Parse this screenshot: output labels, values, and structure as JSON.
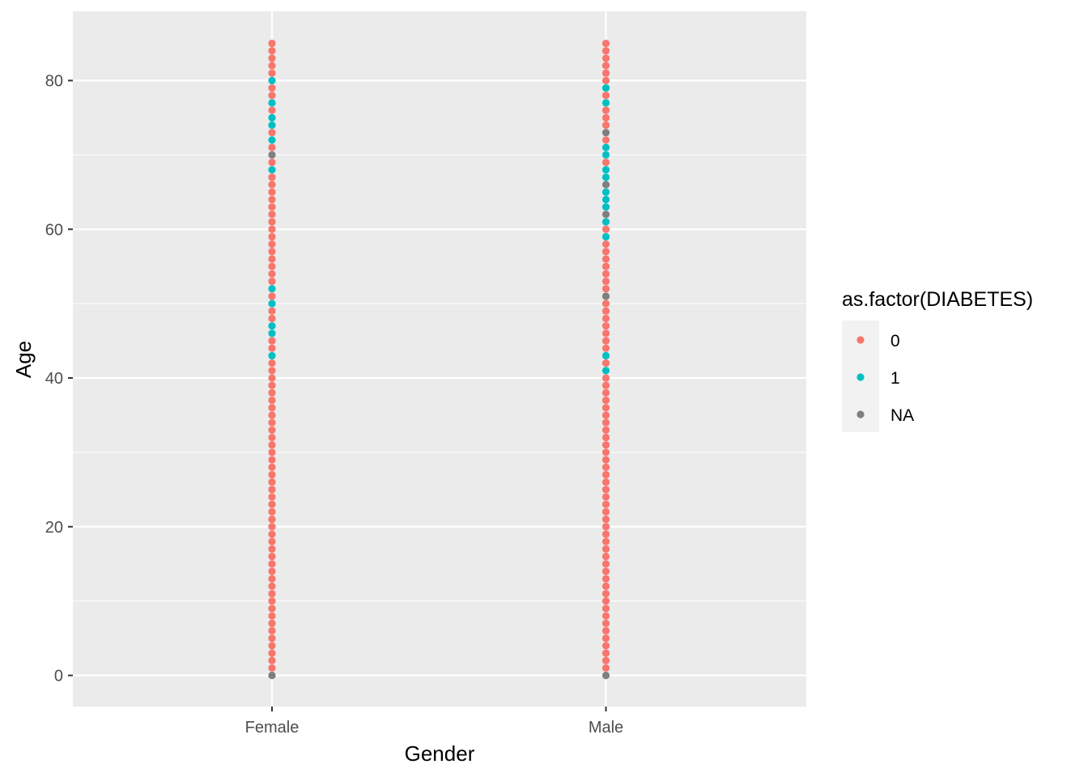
{
  "chart_data": {
    "type": "scatter",
    "title": "",
    "xlabel": "Gender",
    "ylabel": "Age",
    "categories": [
      "Female",
      "Male"
    ],
    "ylim": [
      -4,
      85
    ],
    "yticks": [
      "0",
      "20",
      "40",
      "60",
      "80"
    ],
    "y_tick_values": [
      0,
      20,
      40,
      60,
      80
    ],
    "grid": true,
    "legend": {
      "title": "as.factor(DIABETES)",
      "position": "right",
      "entries": [
        {
          "label": "0",
          "color": "#F8766D"
        },
        {
          "label": "1",
          "color": "#00BFC4"
        },
        {
          "label": "NA",
          "color": "#7F7F7F"
        }
      ]
    },
    "series": [
      {
        "name": "0",
        "color": "#F8766D",
        "points": {
          "Female": [
            1,
            2,
            3,
            4,
            5,
            6,
            7,
            8,
            9,
            10,
            11,
            12,
            13,
            14,
            15,
            16,
            17,
            18,
            19,
            20,
            21,
            22,
            23,
            24,
            25,
            26,
            27,
            28,
            29,
            30,
            31,
            32,
            33,
            34,
            35,
            36,
            37,
            38,
            39,
            40,
            41,
            42,
            44,
            45,
            48,
            49,
            51,
            53,
            54,
            55,
            56,
            57,
            58,
            59,
            60,
            61,
            62,
            63,
            64,
            65,
            66,
            67,
            69,
            71,
            73,
            76,
            78,
            79,
            81,
            82,
            83,
            84,
            85
          ],
          "Male": [
            1,
            2,
            3,
            4,
            5,
            6,
            7,
            8,
            9,
            10,
            11,
            12,
            13,
            14,
            15,
            16,
            17,
            18,
            19,
            20,
            21,
            22,
            23,
            24,
            25,
            26,
            27,
            28,
            29,
            30,
            31,
            32,
            33,
            34,
            35,
            36,
            37,
            38,
            39,
            40,
            42,
            44,
            45,
            46,
            47,
            48,
            49,
            50,
            52,
            53,
            54,
            55,
            56,
            57,
            58,
            60,
            69,
            72,
            74,
            75,
            76,
            78,
            80,
            81,
            82,
            83,
            84,
            85
          ]
        }
      },
      {
        "name": "1",
        "color": "#00BFC4",
        "points": {
          "Female": [
            43,
            46,
            47,
            50,
            52,
            68,
            72,
            74,
            75,
            77,
            80
          ],
          "Male": [
            41,
            43,
            59,
            61,
            63,
            64,
            65,
            67,
            68,
            70,
            71,
            77,
            79
          ]
        }
      },
      {
        "name": "NA",
        "color": "#7F7F7F",
        "points": {
          "Female": [
            0,
            70
          ],
          "Male": [
            0,
            51,
            62,
            66,
            73
          ]
        }
      }
    ]
  }
}
